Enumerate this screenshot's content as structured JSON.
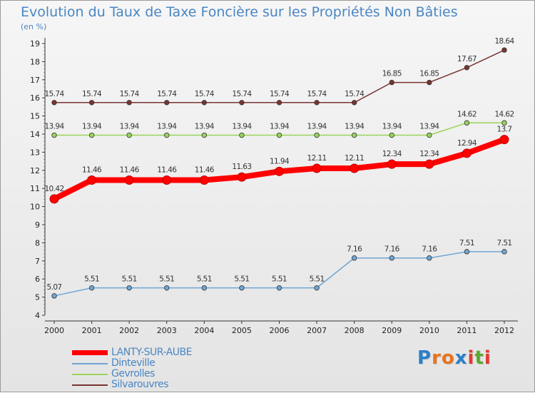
{
  "title": "Evolution du Taux de Taxe Foncière sur les Propriétés Non Bâties",
  "unit_label": "(en %)",
  "chart_data": {
    "type": "line",
    "title": "Evolution du Taux de Taxe Foncière sur les Propriétés Non Bâties",
    "ylabel": "(en %)",
    "xlabel": "",
    "x": [
      "2000",
      "2001",
      "2002",
      "2003",
      "2004",
      "2005",
      "2006",
      "2007",
      "2008",
      "2009",
      "2010",
      "2011",
      "2012"
    ],
    "ylim": [
      4,
      19
    ],
    "yticks": [
      "4",
      "5",
      "6",
      "7",
      "8",
      "9",
      "10",
      "11",
      "12",
      "13",
      "14",
      "15",
      "16",
      "17",
      "18",
      "19"
    ],
    "grid": false,
    "legend_position": "bottom-left",
    "series": [
      {
        "name": "LANTY-SUR-AUBE",
        "color": "#ff0000",
        "values": [
          10.42,
          11.46,
          11.46,
          11.46,
          11.46,
          11.63,
          11.94,
          12.11,
          12.11,
          12.34,
          12.34,
          12.94,
          13.7
        ],
        "labels": [
          "10.42",
          "11.46",
          "11.46",
          "11.46",
          "11.46",
          "11.63",
          "11.94",
          "12.11",
          "12.11",
          "12.34",
          "12.34",
          "12.94",
          "13.7"
        ]
      },
      {
        "name": "Dinteville",
        "color": "#6fa5d4",
        "values": [
          5.07,
          5.51,
          5.51,
          5.51,
          5.51,
          5.51,
          5.51,
          5.51,
          7.16,
          7.16,
          7.16,
          7.51,
          7.51
        ],
        "labels": [
          "5.07",
          "5.51",
          "5.51",
          "5.51",
          "5.51",
          "5.51",
          "5.51",
          "5.51",
          "7.16",
          "7.16",
          "7.16",
          "7.51",
          "7.51"
        ]
      },
      {
        "name": "Gevrolles",
        "color": "#9ad45a",
        "values": [
          13.94,
          13.94,
          13.94,
          13.94,
          13.94,
          13.94,
          13.94,
          13.94,
          13.94,
          13.94,
          13.94,
          14.62,
          14.62
        ],
        "labels": [
          "13.94",
          "13.94",
          "13.94",
          "13.94",
          "13.94",
          "13.94",
          "13.94",
          "13.94",
          "13.94",
          "13.94",
          "13.94",
          "14.62",
          "14.62"
        ]
      },
      {
        "name": "Silvarouvres",
        "color": "#7a3434",
        "values": [
          15.74,
          15.74,
          15.74,
          15.74,
          15.74,
          15.74,
          15.74,
          15.74,
          15.74,
          16.85,
          16.85,
          17.67,
          18.64
        ],
        "labels": [
          "15.74",
          "15.74",
          "15.74",
          "15.74",
          "15.74",
          "15.74",
          "15.74",
          "15.74",
          "15.74",
          "16.85",
          "16.85",
          "17.67",
          "18.64"
        ]
      }
    ]
  },
  "logo": {
    "letters": [
      "P",
      "r",
      "o",
      "x",
      "i",
      "t",
      "i"
    ],
    "colors": [
      "#2a7fc9",
      "#e8731c",
      "#e8731c",
      "#2a7fc9",
      "#e33b2e",
      "#5aa830",
      "#e33b2e"
    ]
  }
}
